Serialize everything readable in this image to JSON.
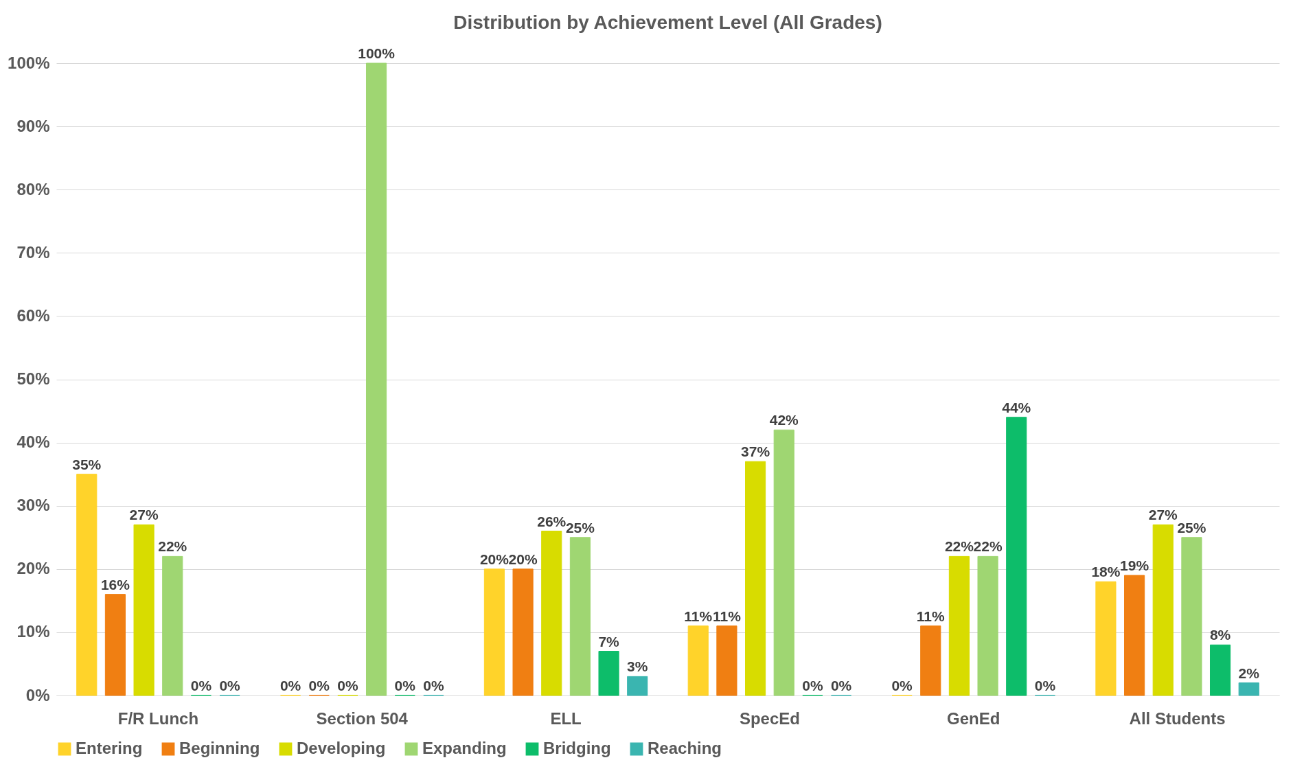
{
  "chart_data": {
    "type": "bar",
    "title": "Distribution by Achievement Level (All Grades)",
    "categories": [
      "F/R Lunch",
      "Section 504",
      "ELL",
      "SpecEd",
      "GenEd",
      "All Students"
    ],
    "series": [
      {
        "name": "Entering",
        "color": "#ffd32a",
        "values": [
          35,
          0,
          20,
          11,
          0,
          18
        ],
        "value_labels": [
          "35%",
          "0%",
          "20%",
          "11%",
          "0%",
          "18%"
        ]
      },
      {
        "name": "Beginning",
        "color": "#f07f12",
        "values": [
          16,
          0,
          20,
          11,
          11,
          19
        ],
        "value_labels": [
          "16%",
          "0%",
          "20%",
          "11%",
          "11%",
          "19%"
        ]
      },
      {
        "name": "Developing",
        "color": "#d8dc00",
        "values": [
          27,
          0,
          26,
          37,
          22,
          27
        ],
        "value_labels": [
          "27%",
          "0%",
          "26%",
          "37%",
          "22%",
          "27%"
        ]
      },
      {
        "name": "Expanding",
        "color": "#9fd672",
        "values": [
          22,
          100,
          25,
          42,
          22,
          25
        ],
        "value_labels": [
          "22%",
          "100%",
          "25%",
          "42%",
          "22%",
          "25%"
        ]
      },
      {
        "name": "Bridging",
        "color": "#0dbd6a",
        "values": [
          0,
          0,
          7,
          0,
          44,
          8
        ],
        "value_labels": [
          "0%",
          "0%",
          "7%",
          "0%",
          "44%",
          "8%"
        ]
      },
      {
        "name": "Reaching",
        "color": "#3ab5b0",
        "values": [
          0,
          0,
          3,
          0,
          0,
          2
        ],
        "value_labels": [
          "0%",
          "0%",
          "3%",
          "0%",
          "0%",
          "2%"
        ]
      }
    ],
    "ylim": [
      0,
      100
    ],
    "yticks": [
      {
        "value": 0,
        "label": "0%"
      },
      {
        "value": 10,
        "label": "10%"
      },
      {
        "value": 20,
        "label": "20%"
      },
      {
        "value": 30,
        "label": "30%"
      },
      {
        "value": 40,
        "label": "40%"
      },
      {
        "value": 50,
        "label": "50%"
      },
      {
        "value": 60,
        "label": "60%"
      },
      {
        "value": 70,
        "label": "70%"
      },
      {
        "value": 80,
        "label": "80%"
      },
      {
        "value": 90,
        "label": "90%"
      },
      {
        "value": 100,
        "label": "100%"
      }
    ],
    "grid": "y",
    "legend": "bottom"
  }
}
